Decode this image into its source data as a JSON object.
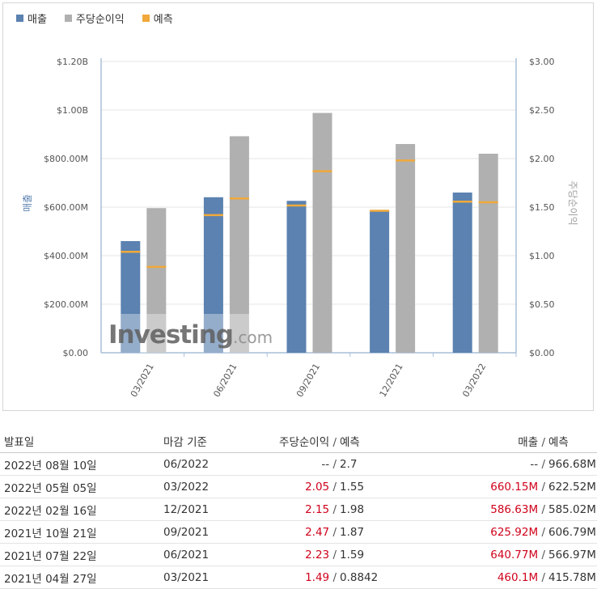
{
  "legend": {
    "revenue": "매출",
    "eps": "주당순이익",
    "forecast": "예측"
  },
  "colors": {
    "revenue": "#5b82b0",
    "eps": "#b0b0b0",
    "forecast": "#f0a93a",
    "axis": "#a7bfd8",
    "grid": "#e6e6e6",
    "positive": "#d0021b"
  },
  "watermark": {
    "main": "Investing",
    "suffix": ".com"
  },
  "chart_data": {
    "type": "bar",
    "categories": [
      "03/2021",
      "06/2021",
      "09/2021",
      "12/2021",
      "03/2022"
    ],
    "series": [
      {
        "name": "매출",
        "axis": "left",
        "values": [
          460.1,
          640.77,
          625.92,
          586.63,
          660.15
        ],
        "unit": "$M"
      },
      {
        "name": "주당순이익",
        "axis": "right",
        "values": [
          1.49,
          2.23,
          2.47,
          2.15,
          2.05
        ],
        "unit": "$"
      }
    ],
    "forecast": [
      {
        "name": "예측",
        "axis": "left",
        "values": [
          415.78,
          566.97,
          606.79,
          585.02,
          622.52
        ]
      },
      {
        "name": "예측",
        "axis": "right",
        "values": [
          0.8842,
          1.59,
          1.87,
          1.98,
          1.55
        ]
      }
    ],
    "ylabel_left": "매출",
    "ylabel_right": "주당순이익",
    "ylim_left": [
      0,
      1200
    ],
    "ylim_right": [
      0,
      3
    ],
    "left_ticks": [
      "$0.00",
      "$200.00M",
      "$400.00M",
      "$600.00M",
      "$800.00M",
      "$1.00B",
      "$1.20B"
    ],
    "right_ticks": [
      "$0.00",
      "$0.50",
      "$1.00",
      "$1.50",
      "$2.00",
      "$2.50",
      "$3.00"
    ],
    "grid": true,
    "legend_position": "top-left"
  },
  "table": {
    "headers": {
      "date": "발표일",
      "period_end": "마감 기준",
      "eps": "주당순이익",
      "eps_forecast": "예측",
      "revenue": "매출",
      "revenue_forecast": "예측",
      "separator": "/"
    },
    "rows": [
      {
        "date": "2022년 08월 10일",
        "period_end": "06/2022",
        "eps": "--",
        "eps_forecast": "2.7",
        "revenue": "--",
        "revenue_forecast": "966.68M",
        "highlight": false
      },
      {
        "date": "2022년 05월 05일",
        "period_end": "03/2022",
        "eps": "2.05",
        "eps_forecast": "1.55",
        "revenue": "660.15M",
        "revenue_forecast": "622.52M",
        "highlight": true
      },
      {
        "date": "2022년 02월 16일",
        "period_end": "12/2021",
        "eps": "2.15",
        "eps_forecast": "1.98",
        "revenue": "586.63M",
        "revenue_forecast": "585.02M",
        "highlight": true
      },
      {
        "date": "2021년 10월 21일",
        "period_end": "09/2021",
        "eps": "2.47",
        "eps_forecast": "1.87",
        "revenue": "625.92M",
        "revenue_forecast": "606.79M",
        "highlight": true
      },
      {
        "date": "2021년 07월 22일",
        "period_end": "06/2021",
        "eps": "2.23",
        "eps_forecast": "1.59",
        "revenue": "640.77M",
        "revenue_forecast": "566.97M",
        "highlight": true
      },
      {
        "date": "2021년 04월 27일",
        "period_end": "03/2021",
        "eps": "1.49",
        "eps_forecast": "0.8842",
        "revenue": "460.1M",
        "revenue_forecast": "415.78M",
        "highlight": true
      }
    ]
  }
}
